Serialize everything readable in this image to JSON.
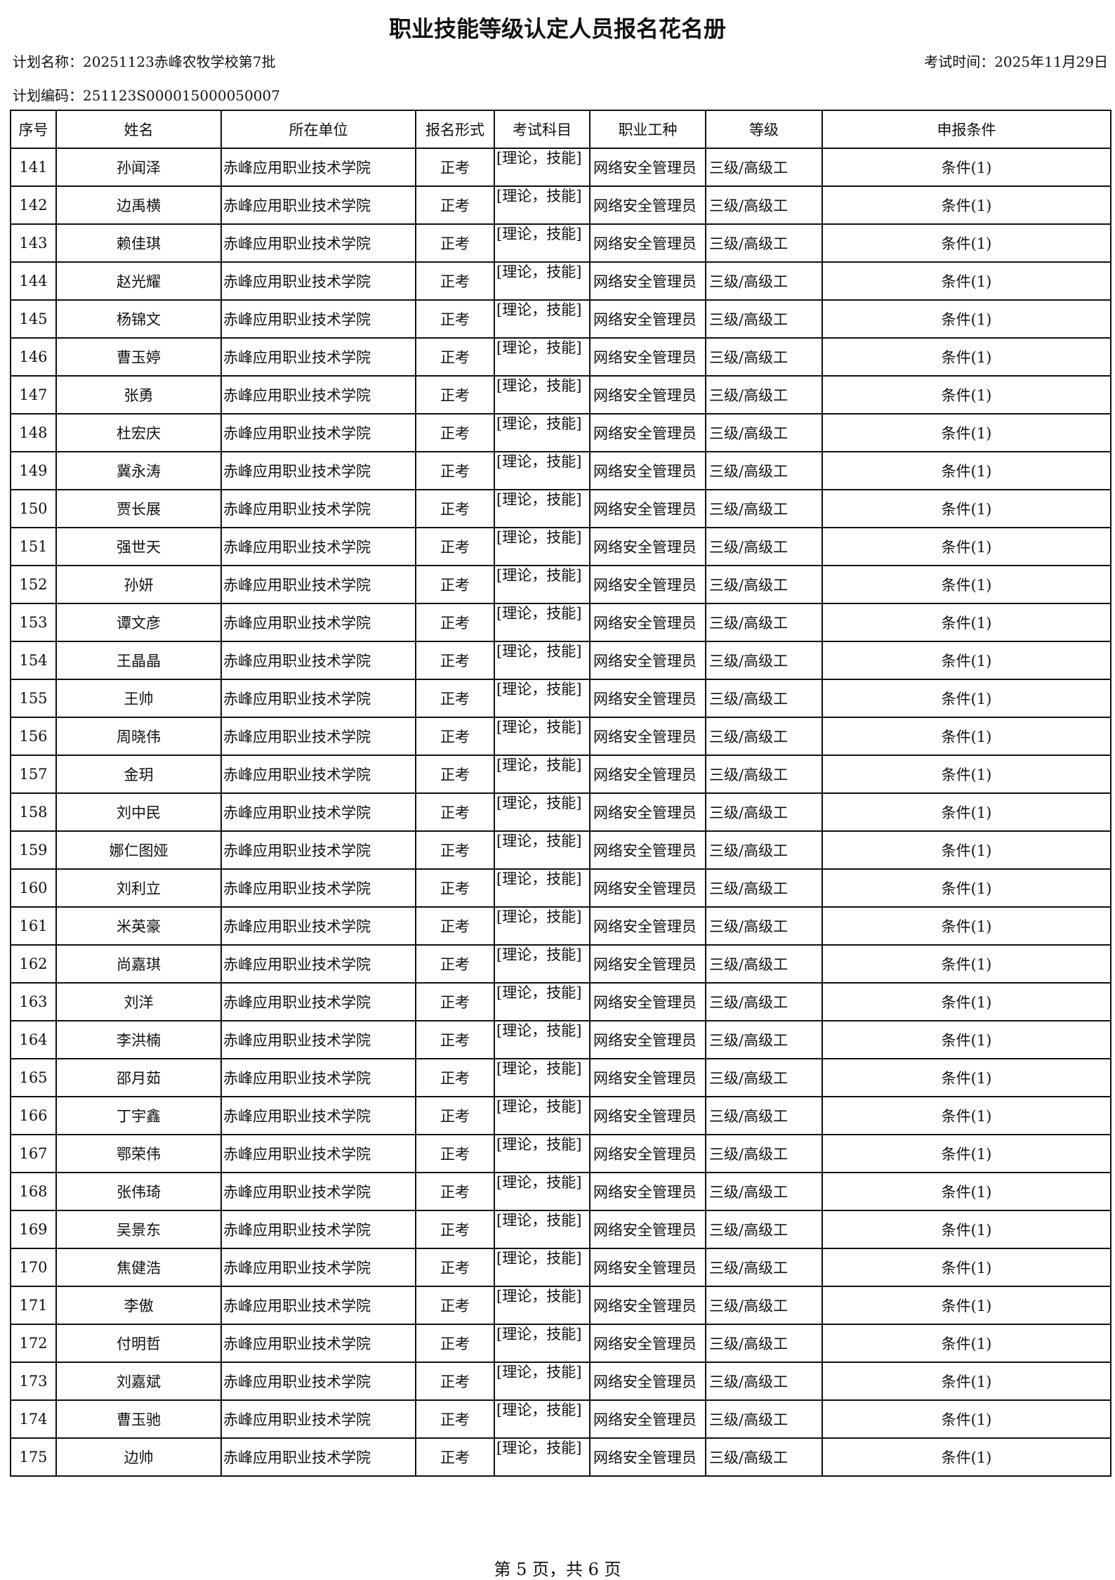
{
  "header": {
    "title": "职业技能等级认定人员报名花名册",
    "plan_name": "计划名称：20251123赤峰农牧学校第7批",
    "exam_time": "考试时间：2025年11月29日",
    "plan_code": "计划编码：251123S000015000050007"
  },
  "table": {
    "columns": [
      "序号",
      "姓名",
      "所在单位",
      "报名形式",
      "考试科目",
      "职业工种",
      "等级",
      "申报条件"
    ],
    "rows": [
      [
        "141",
        "孙闻泽",
        "赤峰应用职业技术学院",
        "正考",
        "[理论，技能]",
        "网络安全管理员",
        "三级/高级工",
        "条件(1)"
      ],
      [
        "142",
        "边禹横",
        "赤峰应用职业技术学院",
        "正考",
        "[理论，技能]",
        "网络安全管理员",
        "三级/高级工",
        "条件(1)"
      ],
      [
        "143",
        "赖佳琪",
        "赤峰应用职业技术学院",
        "正考",
        "[理论，技能]",
        "网络安全管理员",
        "三级/高级工",
        "条件(1)"
      ],
      [
        "144",
        "赵光耀",
        "赤峰应用职业技术学院",
        "正考",
        "[理论，技能]",
        "网络安全管理员",
        "三级/高级工",
        "条件(1)"
      ],
      [
        "145",
        "杨锦文",
        "赤峰应用职业技术学院",
        "正考",
        "[理论，技能]",
        "网络安全管理员",
        "三级/高级工",
        "条件(1)"
      ],
      [
        "146",
        "曹玉婷",
        "赤峰应用职业技术学院",
        "正考",
        "[理论，技能]",
        "网络安全管理员",
        "三级/高级工",
        "条件(1)"
      ],
      [
        "147",
        "张勇",
        "赤峰应用职业技术学院",
        "正考",
        "[理论，技能]",
        "网络安全管理员",
        "三级/高级工",
        "条件(1)"
      ],
      [
        "148",
        "杜宏庆",
        "赤峰应用职业技术学院",
        "正考",
        "[理论，技能]",
        "网络安全管理员",
        "三级/高级工",
        "条件(1)"
      ],
      [
        "149",
        "冀永涛",
        "赤峰应用职业技术学院",
        "正考",
        "[理论，技能]",
        "网络安全管理员",
        "三级/高级工",
        "条件(1)"
      ],
      [
        "150",
        "贾长展",
        "赤峰应用职业技术学院",
        "正考",
        "[理论，技能]",
        "网络安全管理员",
        "三级/高级工",
        "条件(1)"
      ],
      [
        "151",
        "强世天",
        "赤峰应用职业技术学院",
        "正考",
        "[理论，技能]",
        "网络安全管理员",
        "三级/高级工",
        "条件(1)"
      ],
      [
        "152",
        "孙妍",
        "赤峰应用职业技术学院",
        "正考",
        "[理论，技能]",
        "网络安全管理员",
        "三级/高级工",
        "条件(1)"
      ],
      [
        "153",
        "谭文彦",
        "赤峰应用职业技术学院",
        "正考",
        "[理论，技能]",
        "网络安全管理员",
        "三级/高级工",
        "条件(1)"
      ],
      [
        "154",
        "王晶晶",
        "赤峰应用职业技术学院",
        "正考",
        "[理论，技能]",
        "网络安全管理员",
        "三级/高级工",
        "条件(1)"
      ],
      [
        "155",
        "王帅",
        "赤峰应用职业技术学院",
        "正考",
        "[理论，技能]",
        "网络安全管理员",
        "三级/高级工",
        "条件(1)"
      ],
      [
        "156",
        "周晓伟",
        "赤峰应用职业技术学院",
        "正考",
        "[理论，技能]",
        "网络安全管理员",
        "三级/高级工",
        "条件(1)"
      ],
      [
        "157",
        "金玥",
        "赤峰应用职业技术学院",
        "正考",
        "[理论，技能]",
        "网络安全管理员",
        "三级/高级工",
        "条件(1)"
      ],
      [
        "158",
        "刘中民",
        "赤峰应用职业技术学院",
        "正考",
        "[理论，技能]",
        "网络安全管理员",
        "三级/高级工",
        "条件(1)"
      ],
      [
        "159",
        "娜仁图娅",
        "赤峰应用职业技术学院",
        "正考",
        "[理论，技能]",
        "网络安全管理员",
        "三级/高级工",
        "条件(1)"
      ],
      [
        "160",
        "刘利立",
        "赤峰应用职业技术学院",
        "正考",
        "[理论，技能]",
        "网络安全管理员",
        "三级/高级工",
        "条件(1)"
      ],
      [
        "161",
        "米英豪",
        "赤峰应用职业技术学院",
        "正考",
        "[理论，技能]",
        "网络安全管理员",
        "三级/高级工",
        "条件(1)"
      ],
      [
        "162",
        "尚嘉琪",
        "赤峰应用职业技术学院",
        "正考",
        "[理论，技能]",
        "网络安全管理员",
        "三级/高级工",
        "条件(1)"
      ],
      [
        "163",
        "刘洋",
        "赤峰应用职业技术学院",
        "正考",
        "[理论，技能]",
        "网络安全管理员",
        "三级/高级工",
        "条件(1)"
      ],
      [
        "164",
        "李洪楠",
        "赤峰应用职业技术学院",
        "正考",
        "[理论，技能]",
        "网络安全管理员",
        "三级/高级工",
        "条件(1)"
      ],
      [
        "165",
        "邵月茹",
        "赤峰应用职业技术学院",
        "正考",
        "[理论，技能]",
        "网络安全管理员",
        "三级/高级工",
        "条件(1)"
      ],
      [
        "166",
        "丁宇鑫",
        "赤峰应用职业技术学院",
        "正考",
        "[理论，技能]",
        "网络安全管理员",
        "三级/高级工",
        "条件(1)"
      ],
      [
        "167",
        "鄂荣伟",
        "赤峰应用职业技术学院",
        "正考",
        "[理论，技能]",
        "网络安全管理员",
        "三级/高级工",
        "条件(1)"
      ],
      [
        "168",
        "张伟琦",
        "赤峰应用职业技术学院",
        "正考",
        "[理论，技能]",
        "网络安全管理员",
        "三级/高级工",
        "条件(1)"
      ],
      [
        "169",
        "吴景东",
        "赤峰应用职业技术学院",
        "正考",
        "[理论，技能]",
        "网络安全管理员",
        "三级/高级工",
        "条件(1)"
      ],
      [
        "170",
        "焦健浩",
        "赤峰应用职业技术学院",
        "正考",
        "[理论，技能]",
        "网络安全管理员",
        "三级/高级工",
        "条件(1)"
      ],
      [
        "171",
        "李傲",
        "赤峰应用职业技术学院",
        "正考",
        "[理论，技能]",
        "网络安全管理员",
        "三级/高级工",
        "条件(1)"
      ],
      [
        "172",
        "付明哲",
        "赤峰应用职业技术学院",
        "正考",
        "[理论，技能]",
        "网络安全管理员",
        "三级/高级工",
        "条件(1)"
      ],
      [
        "173",
        "刘嘉斌",
        "赤峰应用职业技术学院",
        "正考",
        "[理论，技能]",
        "网络安全管理员",
        "三级/高级工",
        "条件(1)"
      ],
      [
        "174",
        "曹玉驰",
        "赤峰应用职业技术学院",
        "正考",
        "[理论，技能]",
        "网络安全管理员",
        "三级/高级工",
        "条件(1)"
      ],
      [
        "175",
        "边帅",
        "赤峰应用职业技术学院",
        "正考",
        "[理论，技能]",
        "网络安全管理员",
        "三级/高级工",
        "条件(1)"
      ]
    ]
  },
  "footer": {
    "page": "第 5 页，共 6 页"
  }
}
